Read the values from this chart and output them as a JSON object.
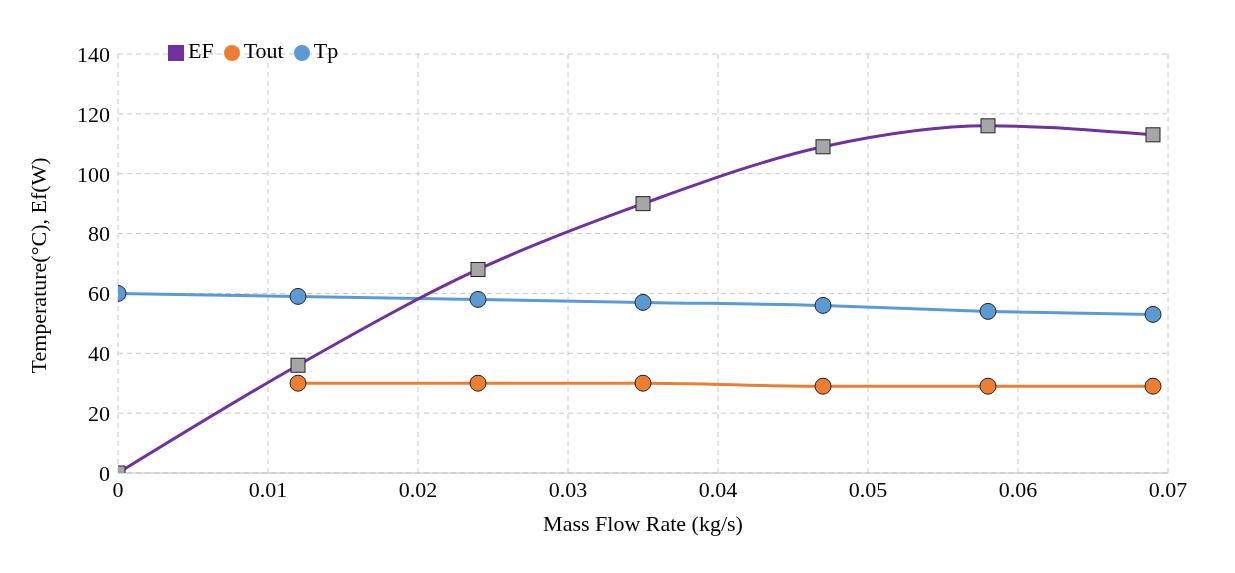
{
  "chart_data": {
    "type": "line",
    "xlabel": "Mass Flow Rate (kg/s)",
    "ylabel": "Temperature(°C), Ef(W)",
    "x": [
      0,
      0.012,
      0.024,
      0.035,
      0.047,
      0.058,
      0.069
    ],
    "series": [
      {
        "name": "Tp",
        "color": "#5b9bd5",
        "marker": "circle",
        "values": [
          60,
          59,
          58,
          57,
          56,
          54,
          53
        ]
      },
      {
        "name": "Tout",
        "color": "#ed7d31",
        "marker": "circle",
        "values": [
          null,
          30,
          30,
          30,
          29,
          29,
          29
        ]
      },
      {
        "name": "EF",
        "color": "#7030a0",
        "marker": "square",
        "values": [
          0,
          36,
          68,
          90,
          109,
          116,
          113
        ]
      }
    ],
    "xlim": [
      0,
      0.07
    ],
    "xticks": [
      0,
      0.01,
      0.02,
      0.03,
      0.04,
      0.05,
      0.06,
      0.07
    ],
    "ylim": [
      0,
      140
    ],
    "yticks": [
      0,
      20,
      40,
      60,
      80,
      100,
      120,
      140
    ],
    "grid": true,
    "legend": "top left",
    "line_style": "solid"
  }
}
